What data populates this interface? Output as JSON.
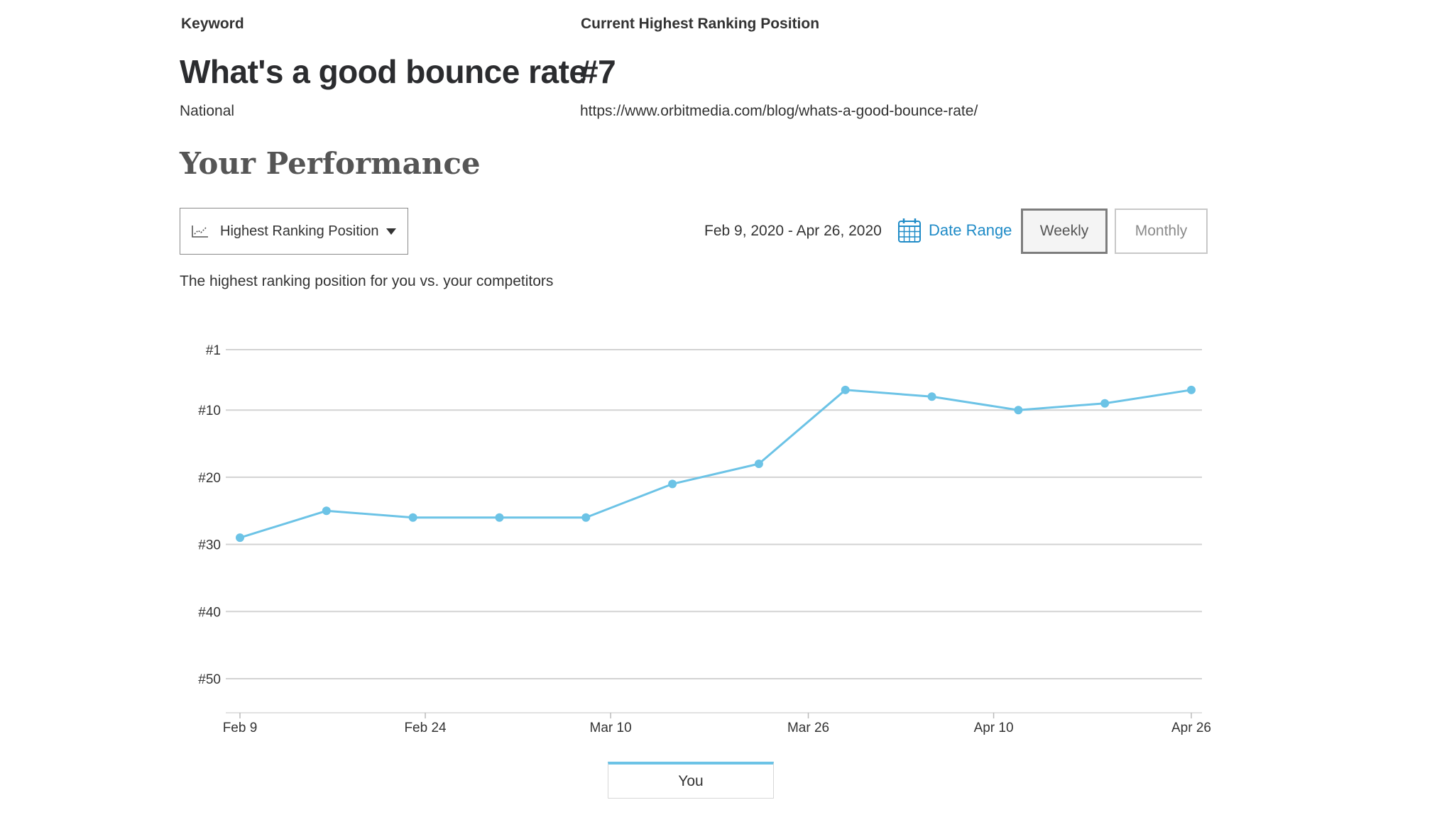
{
  "header": {
    "keyword_label": "Keyword",
    "keyword": "What's a good bounce rate",
    "location": "National",
    "position_label": "Current Highest Ranking Position",
    "position": "#7",
    "url": "https://www.orbitmedia.com/blog/whats-a-good-bounce-rate/"
  },
  "section_title": "Your Performance",
  "controls": {
    "metric_dropdown": "Highest Ranking Position",
    "metric_icon": "line-chart-icon",
    "date_range_text": "Feb 9, 2020 - Apr 26, 2020",
    "date_range_button": "Date Range",
    "date_icon": "calendar-icon",
    "weekly": "Weekly",
    "monthly": "Monthly",
    "active_period": "Weekly"
  },
  "description": "The highest ranking position for you vs. your competitors",
  "colors": {
    "line": "#6cc3e6",
    "accent": "#1f8bc7"
  },
  "chart_data": {
    "type": "line",
    "x": [
      "Feb 9",
      "Feb 16",
      "Feb 23",
      "Mar 1",
      "Mar 8",
      "Mar 15",
      "Mar 22",
      "Mar 29",
      "Apr 5",
      "Apr 12",
      "Apr 19",
      "Apr 26"
    ],
    "x_tick_labels": [
      "Feb 9",
      "Feb 24",
      "Mar 10",
      "Mar 26",
      "Apr 10",
      "Apr 26"
    ],
    "x_tick_dates": [
      "2020-02-09",
      "2020-02-24",
      "2020-03-10",
      "2020-03-26",
      "2020-04-10",
      "2020-04-26"
    ],
    "y_tick_labels": [
      "#1",
      "#10",
      "#20",
      "#30",
      "#40",
      "#50"
    ],
    "y_tick_values": [
      1,
      10,
      20,
      30,
      40,
      50
    ],
    "ylim": [
      1,
      55
    ],
    "y_reversed": true,
    "grid": true,
    "legend_position": "bottom-center",
    "series": [
      {
        "name": "You",
        "values": [
          29,
          25,
          26,
          26,
          26,
          21,
          18,
          7,
          8,
          10,
          9,
          7
        ]
      }
    ]
  }
}
